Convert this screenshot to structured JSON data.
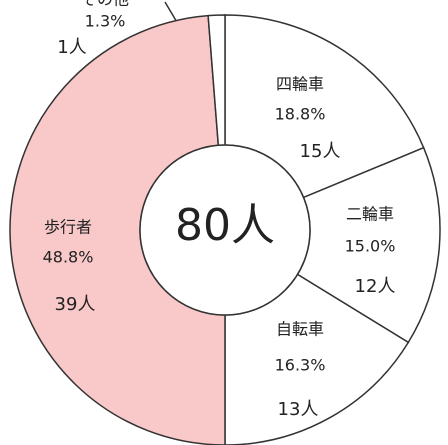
{
  "chart_data": {
    "type": "donut",
    "center_label": "80人",
    "categories": [
      "四輪車",
      "二輪車",
      "自転車",
      "歩行者",
      "その他"
    ],
    "values": [
      15,
      12,
      13,
      39,
      1
    ],
    "value_labels": [
      "15人",
      "12人",
      "13人",
      "39人",
      "1人"
    ],
    "percent_labels": [
      "18.8%",
      "15.0%",
      "16.3%",
      "48.8%",
      "1.3%"
    ],
    "colors": [
      "#ffffff",
      "#ffffff",
      "#ffffff",
      "#f9c9c9",
      "#ffffff"
    ]
  }
}
